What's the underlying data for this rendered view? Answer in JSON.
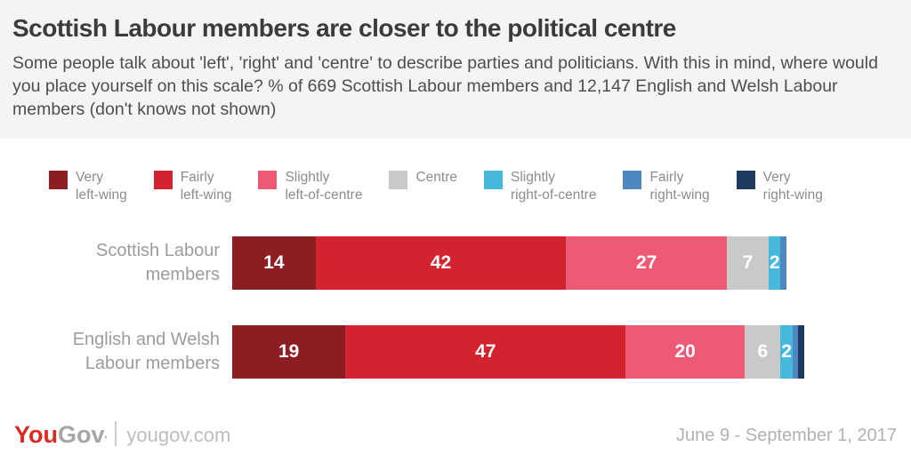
{
  "header": {
    "title": "Scottish Labour members are closer to the political centre",
    "subtitle": "Some people talk about 'left', 'right' and 'centre' to describe parties and politicians. With this in mind, where would you place yourself on this scale? % of 669 Scottish Labour members and 12,147 English and Welsh Labour members (don't knows not shown)"
  },
  "chart_data": {
    "type": "bar",
    "orientation": "horizontal-stacked",
    "value_unit": "%",
    "legend_position": "top",
    "label_min_value_shown": 2,
    "legend": [
      {
        "label": "Very left-wing",
        "color": "#8c1d23"
      },
      {
        "label": "Fairly left-wing",
        "color": "#d2232e"
      },
      {
        "label": "Slightly left-of-centre",
        "color": "#ee5a76"
      },
      {
        "label": "Centre",
        "color": "#c9c9c9"
      },
      {
        "label": "Slightly right-of-centre",
        "color": "#45b8dc"
      },
      {
        "label": "Fairly right-wing",
        "color": "#4f87c3"
      },
      {
        "label": "Very right-wing",
        "color": "#1e3a5f"
      }
    ],
    "categories": [
      "Scottish Labour members",
      "English and Welsh Labour members"
    ],
    "category_lines": [
      [
        "Scottish Labour",
        "members"
      ],
      [
        "English and Welsh",
        "Labour members"
      ]
    ],
    "series": [
      {
        "name": "Scottish Labour members",
        "values": [
          14,
          42,
          27,
          7,
          2,
          1,
          0
        ]
      },
      {
        "name": "English and Welsh Labour members",
        "values": [
          19,
          47,
          20,
          6,
          2,
          1,
          1
        ]
      }
    ]
  },
  "footer": {
    "logo_you": "You",
    "logo_gov": "Gov",
    "logo_mark": "'",
    "site": "yougov.com",
    "date_range": "June 9 - September 1, 2017"
  },
  "colors": {
    "header_bg": "#f4f4f4",
    "title_text": "#3b3b3b",
    "subtitle_text": "#4e4e4e",
    "legend_text": "#8c8c8c",
    "bar_label_text": "#9c9c9c",
    "value_text": "#ffffff",
    "brand_red": "#e02823",
    "footer_gray": "#b1b1b1"
  }
}
